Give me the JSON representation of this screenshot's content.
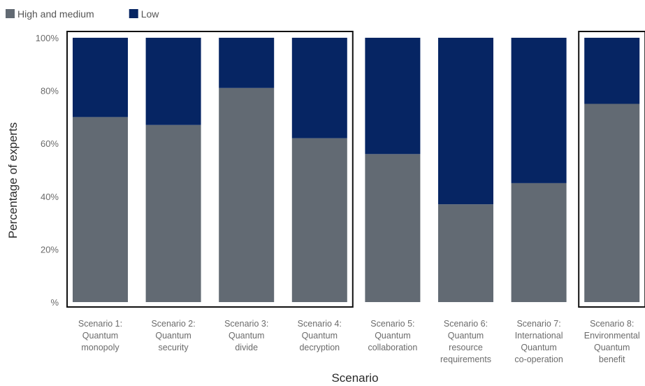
{
  "chart_data": {
    "type": "bar",
    "stacked": true,
    "percent": true,
    "title": "",
    "xlabel": "Scenario",
    "ylabel": "Percentage of experts",
    "ylim": [
      0,
      100
    ],
    "yticks": [
      {
        "value": 0,
        "label": "%"
      },
      {
        "value": 20,
        "label": "20%"
      },
      {
        "value": 40,
        "label": "40%"
      },
      {
        "value": 60,
        "label": "60%"
      },
      {
        "value": 80,
        "label": "80%"
      },
      {
        "value": 100,
        "label": "100%"
      }
    ],
    "legend_position": "top-left",
    "grid": false,
    "categories": [
      [
        "Scenario 1:",
        "Quantum",
        "monopoly"
      ],
      [
        "Scenario 2:",
        "Quantum",
        "security"
      ],
      [
        "Scenario 3:",
        "Quantum",
        "divide"
      ],
      [
        "Scenario 4:",
        "Quantum",
        "decryption"
      ],
      [
        "Scenario 5:",
        "Quantum",
        "collaboration"
      ],
      [
        "Scenario 6:",
        "Quantum",
        "resource",
        "requirements"
      ],
      [
        "Scenario 7:",
        "International",
        "Quantum",
        "co-operation"
      ],
      [
        "Scenario 8:",
        "Environmental",
        "Quantum",
        "benefit"
      ]
    ],
    "series": [
      {
        "name": "High and medium",
        "color": "#626a73",
        "values": [
          70,
          67,
          81,
          62,
          56,
          37,
          45,
          75
        ]
      },
      {
        "name": "Low",
        "color": "#062563",
        "values": [
          30,
          33,
          19,
          38,
          44,
          63,
          55,
          25
        ]
      }
    ],
    "highlight_groups": [
      [
        0,
        3
      ],
      [
        7,
        7
      ]
    ]
  }
}
